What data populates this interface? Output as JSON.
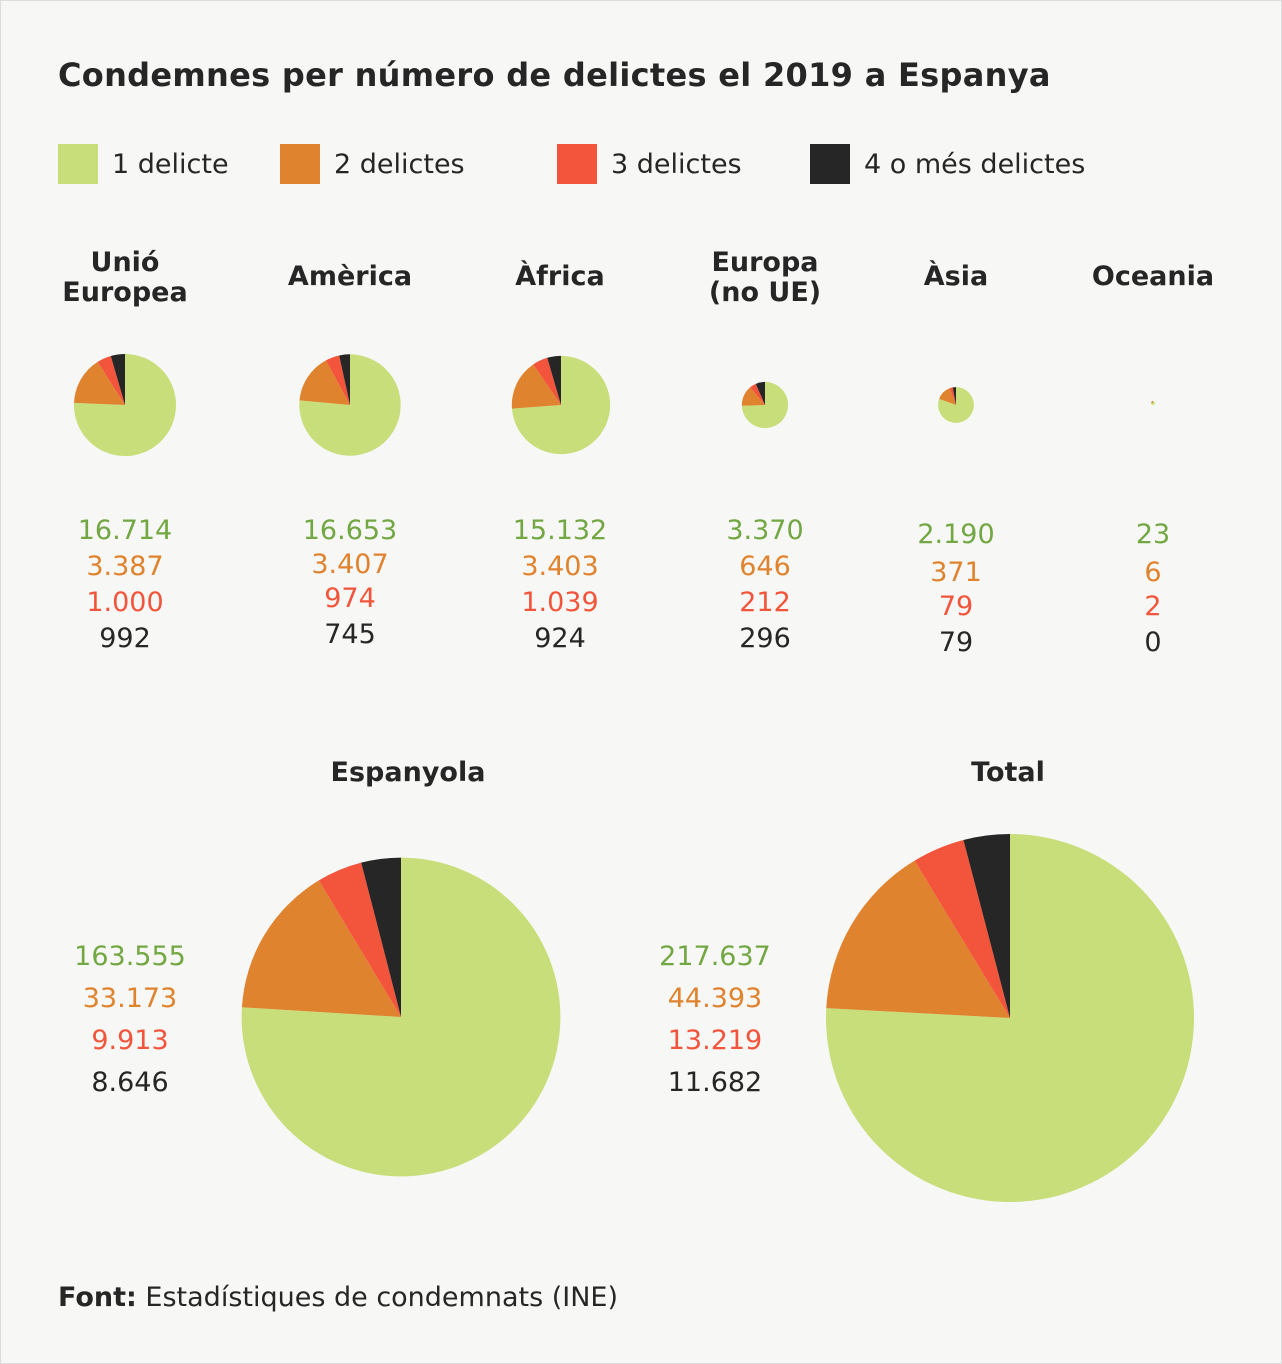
{
  "title": "Condemnes per número de delictes el 2019 a Espanya",
  "legend": [
    {
      "label": "1 delicte",
      "color": "#c8de7a"
    },
    {
      "label": "2 delictes",
      "color": "#e0832f"
    },
    {
      "label": "3 delictes",
      "color": "#f2553b"
    },
    {
      "label": "4 o més delictes",
      "color": "#262626"
    }
  ],
  "text_colors": [
    "#72a743",
    "#e0832f",
    "#f2553b",
    "#262626"
  ],
  "chart_data": {
    "type": "pie",
    "series_names": [
      "1 delicte",
      "2 delictes",
      "3 delictes",
      "4 o més delictes"
    ],
    "pie_size": "area proportional to total",
    "start": "12 o'clock, clockwise",
    "groups": [
      {
        "name": "Unió Europea",
        "name_lines": [
          "Unió",
          "Europea"
        ],
        "values": [
          16714,
          3387,
          1000,
          992
        ],
        "labels": [
          "16.714",
          "3.387",
          "1.000",
          "992"
        ]
      },
      {
        "name": "Amèrica",
        "name_lines": [
          "Amèrica"
        ],
        "values": [
          16653,
          3407,
          974,
          745
        ],
        "labels": [
          "16.653",
          "3.407",
          "974",
          "745"
        ]
      },
      {
        "name": "Àfrica",
        "name_lines": [
          "Àfrica"
        ],
        "values": [
          15132,
          3403,
          1039,
          924
        ],
        "labels": [
          "15.132",
          "3.403",
          "1.039",
          "924"
        ]
      },
      {
        "name": "Europa (no UE)",
        "name_lines": [
          "Europa",
          "(no UE)"
        ],
        "values": [
          3370,
          646,
          212,
          296
        ],
        "labels": [
          "3.370",
          "646",
          "212",
          "296"
        ]
      },
      {
        "name": "Àsia",
        "name_lines": [
          "Àsia"
        ],
        "values": [
          2190,
          371,
          79,
          79
        ],
        "labels": [
          "2.190",
          "371",
          "79",
          "79"
        ]
      },
      {
        "name": "Oceania",
        "name_lines": [
          "Oceania"
        ],
        "values": [
          23,
          6,
          2,
          0
        ],
        "labels": [
          "23",
          "6",
          "2",
          "0"
        ]
      },
      {
        "name": "Espanyola",
        "name_lines": [
          "Espanyola"
        ],
        "values": [
          163555,
          33173,
          9913,
          8646
        ],
        "labels": [
          "163.555",
          "33.173",
          "9.913",
          "8.646"
        ]
      },
      {
        "name": "Total",
        "name_lines": [
          "Total"
        ],
        "values": [
          217637,
          44393,
          13219,
          11682
        ],
        "labels": [
          "217.637",
          "44.393",
          "13.219",
          "11.682"
        ]
      }
    ]
  },
  "source": {
    "label": "Font:",
    "text": "Estadístiques de condemnats (INE)"
  }
}
